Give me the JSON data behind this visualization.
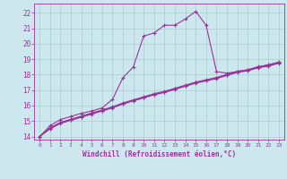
{
  "xlabel": "Windchill (Refroidissement éolien,°C)",
  "bg_color": "#cce8ee",
  "grid_color": "#aacccc",
  "line_color": "#993399",
  "xlim": [
    -0.5,
    23.5
  ],
  "ylim": [
    13.8,
    22.6
  ],
  "yticks": [
    14,
    15,
    16,
    17,
    18,
    19,
    20,
    21,
    22
  ],
  "xticks": [
    0,
    1,
    2,
    3,
    4,
    5,
    6,
    7,
    8,
    9,
    10,
    11,
    12,
    13,
    14,
    15,
    16,
    17,
    18,
    19,
    20,
    21,
    22,
    23
  ],
  "line1_x": [
    0,
    1,
    2,
    3,
    4,
    5,
    6,
    7,
    8,
    9,
    10,
    11,
    12,
    13,
    14,
    15,
    16,
    17,
    18,
    19,
    20,
    21,
    22,
    23
  ],
  "line1_y": [
    14.0,
    14.7,
    15.1,
    15.3,
    15.5,
    15.65,
    15.85,
    16.4,
    17.8,
    18.5,
    20.5,
    20.7,
    21.2,
    21.2,
    21.6,
    22.1,
    21.2,
    18.2,
    18.1,
    18.2,
    18.3,
    18.5,
    18.65,
    18.8
  ],
  "line2_x": [
    0,
    1,
    2,
    3,
    4,
    5,
    6,
    7,
    8,
    9,
    10,
    11,
    12,
    13,
    14,
    15,
    16,
    17,
    18,
    19,
    20,
    21,
    22,
    23
  ],
  "line2_y": [
    14.0,
    14.5,
    14.85,
    15.05,
    15.25,
    15.45,
    15.65,
    15.85,
    16.1,
    16.3,
    16.5,
    16.7,
    16.85,
    17.05,
    17.25,
    17.45,
    17.6,
    17.75,
    17.95,
    18.15,
    18.25,
    18.45,
    18.55,
    18.75
  ],
  "line3_x": [
    0,
    1,
    2,
    3,
    4,
    5,
    6,
    7,
    8,
    9,
    10,
    11,
    12,
    13,
    14,
    15,
    16,
    17,
    18,
    19,
    20,
    21,
    22,
    23
  ],
  "line3_y": [
    14.0,
    14.52,
    14.88,
    15.08,
    15.28,
    15.48,
    15.68,
    15.88,
    16.13,
    16.33,
    16.53,
    16.73,
    16.88,
    17.08,
    17.28,
    17.48,
    17.63,
    17.78,
    17.98,
    18.18,
    18.28,
    18.48,
    18.58,
    18.78
  ],
  "line4_x": [
    0,
    1,
    2,
    3,
    4,
    5,
    6,
    7,
    8,
    9,
    10,
    11,
    12,
    13,
    14,
    15,
    16,
    17,
    18,
    19,
    20,
    21,
    22,
    23
  ],
  "line4_y": [
    14.0,
    14.56,
    14.92,
    15.12,
    15.32,
    15.52,
    15.72,
    15.92,
    16.17,
    16.37,
    16.57,
    16.77,
    16.92,
    17.12,
    17.32,
    17.52,
    17.67,
    17.82,
    18.02,
    18.22,
    18.32,
    18.52,
    18.62,
    18.82
  ]
}
